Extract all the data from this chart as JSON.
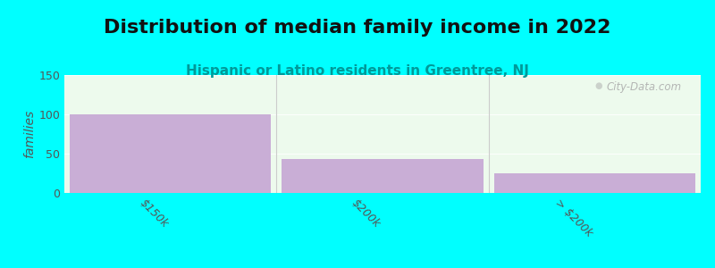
{
  "title": "Distribution of median family income in 2022",
  "subtitle": "Hispanic or Latino residents in Greentree, NJ",
  "categories": [
    "$150k",
    "$200k",
    "> $200k"
  ],
  "values": [
    100,
    43,
    25
  ],
  "bar_color": "#c9aed6",
  "background_color": "#00ffff",
  "plot_bg_color": "#edfaed",
  "ylabel": "families",
  "ylim": [
    0,
    150
  ],
  "yticks": [
    0,
    50,
    100,
    150
  ],
  "watermark": "City-Data.com",
  "title_fontsize": 16,
  "subtitle_fontsize": 11,
  "title_color": "#111111",
  "subtitle_color": "#009999",
  "ylabel_color": "#555555",
  "ytick_color": "#555555",
  "xtick_color": "#555555",
  "bar_edge_color": "none",
  "separator_color": "#cccccc",
  "watermark_color": "#aaaaaa"
}
